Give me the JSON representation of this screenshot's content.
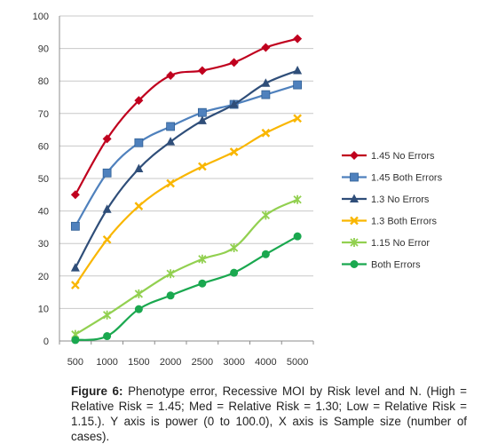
{
  "chart_data": {
    "type": "line",
    "categories": [
      "500",
      "1000",
      "1500",
      "2000",
      "2500",
      "3000",
      "4000",
      "5000"
    ],
    "ylim": [
      0,
      100
    ],
    "yticks": [
      0,
      10,
      20,
      30,
      40,
      50,
      60,
      70,
      80,
      90,
      100
    ],
    "grid": "horizontal",
    "legend_position": "right",
    "series": [
      {
        "name": "1.45 No Errors",
        "color": "#c0001e",
        "marker": "diamond",
        "values": [
          45,
          62.2,
          74,
          81.7,
          83.2,
          85.7,
          90.3,
          93
        ]
      },
      {
        "name": "1.45 Both Errors",
        "color": "#4f81bd",
        "marker": "square",
        "values": [
          35.3,
          51.7,
          61,
          66,
          70.3,
          72.8,
          75.8,
          78.8
        ]
      },
      {
        "name": "1.3 No Errors",
        "color": "#2f4e79",
        "marker": "triangle",
        "values": [
          22.5,
          40.5,
          53,
          61.3,
          67.8,
          72.8,
          79.3,
          83.2
        ]
      },
      {
        "name": "1.3 Both Errors",
        "color": "#f9b600",
        "marker": "x",
        "values": [
          17.2,
          31.2,
          41.5,
          48.5,
          53.7,
          58.2,
          64,
          68.5
        ]
      },
      {
        "name": "1.15 No Error",
        "color": "#92d050",
        "marker": "star",
        "values": [
          2,
          8,
          14.5,
          20.7,
          25.2,
          28.7,
          38.7,
          43.5
        ]
      },
      {
        "name": "Both Errors",
        "color": "#1aa84f",
        "marker": "circle",
        "values": [
          0.3,
          1.5,
          9.8,
          14,
          17.7,
          21,
          26.7,
          32.2
        ]
      }
    ]
  },
  "caption": {
    "label": "Figure 6:",
    "text": " Phenotype error, Recessive MOI by Risk level and N. (High = Relative Risk = 1.45; Med = Relative Risk = 1.30; Low = Relative Risk = 1.15.). Y axis is power (0 to 100.0), X axis is Sample size (number of cases)."
  }
}
